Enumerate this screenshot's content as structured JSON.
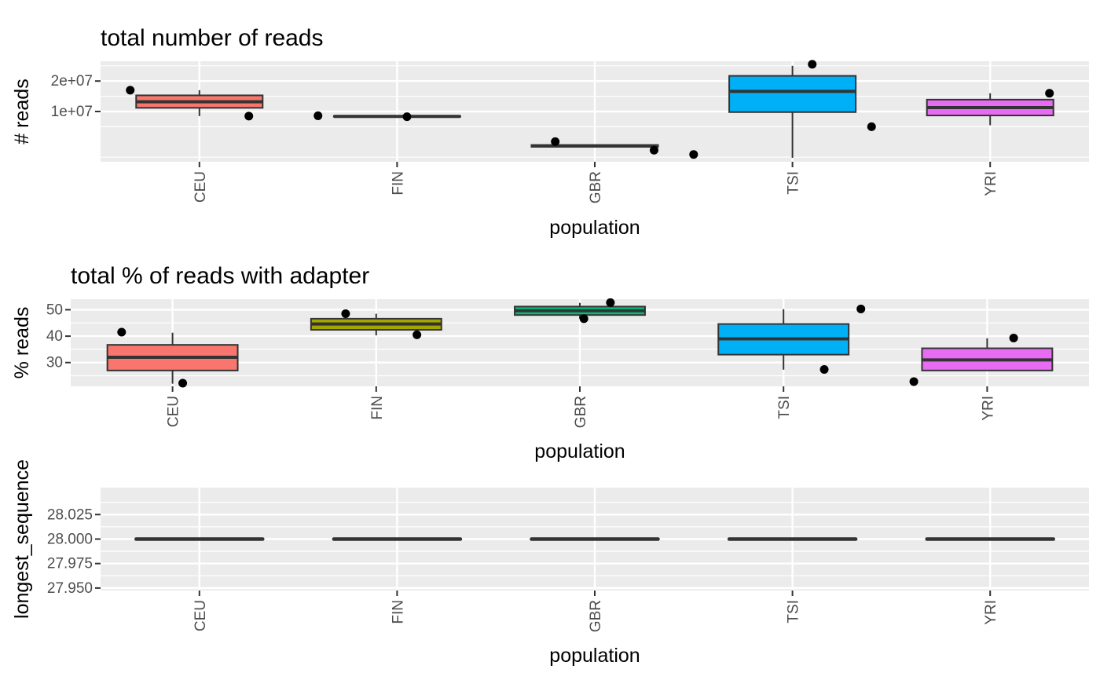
{
  "chart_data": [
    {
      "type": "box",
      "title": "total number of reads",
      "xlabel": "population",
      "ylabel": "# reads",
      "categories": [
        "CEU",
        "FIN",
        "GBR",
        "TSI",
        "YRI"
      ],
      "colors": [
        "#f8766d",
        "#a3a500",
        "#00bf7d",
        "#00b0f6",
        "#e76bf3"
      ],
      "ylim": [
        -6500000,
        26500000
      ],
      "yticks": [
        10000000,
        20000000
      ],
      "ytick_labels": [
        "1e+07",
        "2e+07"
      ],
      "boxes": [
        {
          "category": "CEU",
          "min": 8500000,
          "q1": 11200000,
          "median": 13200000,
          "q3": 15300000,
          "max": 17000000
        },
        {
          "category": "FIN",
          "min": 8300000,
          "q1": 8300000,
          "median": 8400000,
          "q3": 8500000,
          "max": 8600000
        },
        {
          "category": "GBR",
          "min": -1600000,
          "q1": -1600000,
          "median": -1300000,
          "q3": -1000000,
          "max": -1000000
        },
        {
          "category": "TSI",
          "min": -5200000,
          "q1": 9800000,
          "median": 16600000,
          "q3": 21700000,
          "max": 25000000
        },
        {
          "category": "YRI",
          "min": 5500000,
          "q1": 8700000,
          "median": 11300000,
          "q3": 13900000,
          "max": 16000000
        }
      ],
      "points": [
        {
          "category": "CEU",
          "offset": -0.35,
          "y": 17000000
        },
        {
          "category": "CEU",
          "offset": 0.25,
          "y": 8500000
        },
        {
          "category": "FIN",
          "offset": -0.4,
          "y": 8600000
        },
        {
          "category": "FIN",
          "offset": 0.05,
          "y": 8300000
        },
        {
          "category": "GBR",
          "offset": -0.2,
          "y": 100000
        },
        {
          "category": "GBR",
          "offset": 0.3,
          "y": -2700000
        },
        {
          "category": "TSI",
          "offset": -0.5,
          "y": -4100000
        },
        {
          "category": "TSI",
          "offset": 0.1,
          "y": 25500000
        },
        {
          "category": "YRI",
          "offset": -0.6,
          "y": 5000000
        },
        {
          "category": "YRI",
          "offset": 0.3,
          "y": 16000000
        }
      ]
    },
    {
      "type": "box",
      "title": "total % of reads with adapter",
      "xlabel": "population",
      "ylabel": "% reads",
      "categories": [
        "CEU",
        "FIN",
        "GBR",
        "TSI",
        "YRI"
      ],
      "colors": [
        "#f8766d",
        "#a3a500",
        "#00bf7d",
        "#00b0f6",
        "#e76bf3"
      ],
      "ylim": [
        21,
        54
      ],
      "yticks": [
        30,
        40,
        50
      ],
      "ytick_labels": [
        "30",
        "40",
        "50"
      ],
      "boxes": [
        {
          "category": "CEU",
          "min": 22,
          "q1": 27,
          "median": 32,
          "q3": 36.7,
          "max": 41.3
        },
        {
          "category": "FIN",
          "min": 40.3,
          "q1": 42.4,
          "median": 44.6,
          "q3": 46.6,
          "max": 48.5
        },
        {
          "category": "GBR",
          "min": 46.6,
          "q1": 48,
          "median": 49.6,
          "q3": 51.2,
          "max": 52.6
        },
        {
          "category": "TSI",
          "min": 27.3,
          "q1": 33,
          "median": 39,
          "q3": 44.6,
          "max": 50.2
        },
        {
          "category": "YRI",
          "min": 27,
          "q1": 27,
          "median": 31,
          "q3": 35.4,
          "max": 39.2
        }
      ],
      "points": [
        {
          "category": "CEU",
          "offset": -0.25,
          "y": 41.5
        },
        {
          "category": "CEU",
          "offset": 0.05,
          "y": 22.2
        },
        {
          "category": "FIN",
          "offset": -0.15,
          "y": 48.5
        },
        {
          "category": "FIN",
          "offset": 0.2,
          "y": 40.5
        },
        {
          "category": "GBR",
          "offset": 0.02,
          "y": 46.6
        },
        {
          "category": "GBR",
          "offset": 0.15,
          "y": 52.7
        },
        {
          "category": "TSI",
          "offset": 0.2,
          "y": 27.4
        },
        {
          "category": "TSI",
          "offset": 0.38,
          "y": 50.3
        },
        {
          "category": "YRI",
          "offset": -0.36,
          "y": 22.8
        },
        {
          "category": "YRI",
          "offset": 0.13,
          "y": 39.3
        }
      ]
    },
    {
      "type": "box",
      "title": "",
      "xlabel": "population",
      "ylabel": "longest_sequence",
      "categories": [
        "CEU",
        "FIN",
        "GBR",
        "TSI",
        "YRI"
      ],
      "colors": [
        "#f8766d",
        "#a3a500",
        "#00bf7d",
        "#00b0f6",
        "#e76bf3"
      ],
      "ylim": [
        27.9475,
        28.0525
      ],
      "yticks": [
        27.95,
        27.975,
        28.0,
        28.025
      ],
      "ytick_labels": [
        "27.950",
        "27.975",
        "28.000",
        "28.025"
      ],
      "boxes": [
        {
          "category": "CEU",
          "min": 28,
          "q1": 28,
          "median": 28,
          "q3": 28,
          "max": 28
        },
        {
          "category": "FIN",
          "min": 28,
          "q1": 28,
          "median": 28,
          "q3": 28,
          "max": 28
        },
        {
          "category": "GBR",
          "min": 28,
          "q1": 28,
          "median": 28,
          "q3": 28,
          "max": 28
        },
        {
          "category": "TSI",
          "min": 28,
          "q1": 28,
          "median": 28,
          "q3": 28,
          "max": 28
        },
        {
          "category": "YRI",
          "min": 28,
          "q1": 28,
          "median": 28,
          "q3": 28,
          "max": 28
        }
      ],
      "points": []
    }
  ]
}
